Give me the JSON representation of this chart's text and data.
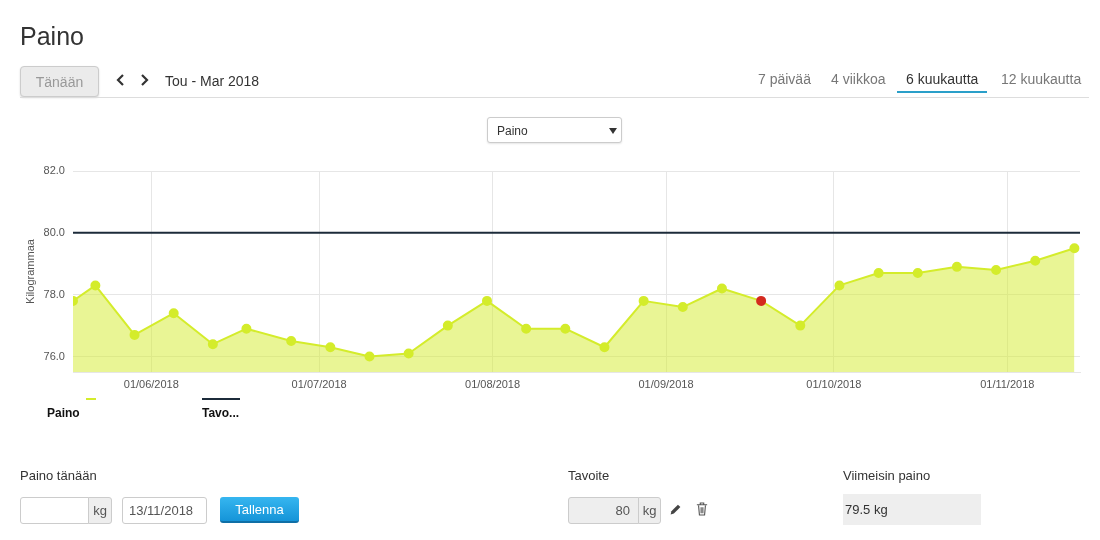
{
  "chart_data": {
    "type": "area",
    "title": "Paino",
    "subtitle": "Tou - Mar 2018",
    "ylabel": "Kilogrammaa",
    "x": [
      "2018-05-18",
      "2018-05-22",
      "2018-05-29",
      "2018-06-05",
      "2018-06-12",
      "2018-06-18",
      "2018-06-26",
      "2018-07-03",
      "2018-07-10",
      "2018-07-17",
      "2018-07-24",
      "2018-07-31",
      "2018-08-07",
      "2018-08-14",
      "2018-08-21",
      "2018-08-28",
      "2018-09-04",
      "2018-09-11",
      "2018-09-18",
      "2018-09-25",
      "2018-10-02",
      "2018-10-09",
      "2018-10-16",
      "2018-10-23",
      "2018-10-30",
      "2018-11-06",
      "2018-11-13"
    ],
    "series": [
      {
        "name": "Paino",
        "color": "#d4ec2b",
        "colors": [
          "#d4ec2b",
          "#d4ec2b",
          "#d4ec2b",
          "#d4ec2b",
          "#d4ec2b",
          "#d4ec2b",
          "#d4ec2b",
          "#d4ec2b",
          "#d4ec2b",
          "#d4ec2b",
          "#d4ec2b",
          "#d4ec2b",
          "#d4ec2b",
          "#d4ec2b",
          "#d4ec2b",
          "#d4ec2b",
          "#d4ec2b",
          "#d4ec2b",
          "#d42a1f",
          "#d4ec2b",
          "#d4ec2b",
          "#d4ec2b",
          "#d4ec2b",
          "#d4ec2b",
          "#d4ec2b",
          "#d4ec2b",
          "#d4ec2b"
        ],
        "values": [
          77.8,
          78.3,
          76.7,
          77.4,
          76.4,
          76.9,
          76.5,
          76.3,
          76.0,
          76.1,
          77.0,
          77.8,
          76.9,
          76.9,
          76.3,
          77.8,
          77.6,
          78.2,
          77.8,
          77.0,
          78.3,
          78.7,
          78.7,
          78.9,
          78.8,
          79.1,
          79.5
        ]
      }
    ],
    "ref_lines": [
      {
        "axis": "y",
        "value": 80,
        "label": "Tavo...",
        "color": "#1c2b3a"
      }
    ],
    "xlim": [
      "2018-05-18",
      "2018-11-14"
    ],
    "xticks": [
      {
        "value": "2018-06-01",
        "label": "01/06/2018"
      },
      {
        "value": "2018-07-01",
        "label": "01/07/2018"
      },
      {
        "value": "2018-08-01",
        "label": "01/08/2018"
      },
      {
        "value": "2018-09-01",
        "label": "01/09/2018"
      },
      {
        "value": "2018-10-01",
        "label": "01/10/2018"
      },
      {
        "value": "2018-11-01",
        "label": "01/11/2018"
      }
    ],
    "ylim": [
      75.5,
      82
    ],
    "yticks": [
      {
        "value": 76,
        "label": "76.0"
      },
      {
        "value": 78,
        "label": "78.0"
      },
      {
        "value": 80,
        "label": "80.0"
      },
      {
        "value": 82,
        "label": "82.0"
      }
    ],
    "grid": true,
    "legend": "bottom left",
    "marker": "circle",
    "annotations": [
      "Tänään",
      "7 päivää",
      "4 viikkoa",
      "6 kuukautta",
      "12 kuukautta",
      "Paino",
      "Paino tänään",
      "kg",
      "13/11/2018",
      "Tallenna",
      "Tavoite",
      "80",
      "kg",
      "Viimeisin paino",
      "79.5 kg"
    ]
  }
}
